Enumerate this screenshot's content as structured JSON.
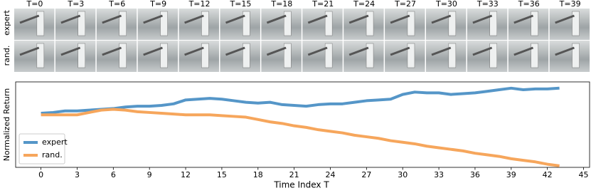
{
  "frames": {
    "labels": [
      "T=0",
      "T=3",
      "T=6",
      "T=9",
      "T=12",
      "T=15",
      "T=18",
      "T=21",
      "T=24",
      "T=27",
      "T=30",
      "T=33",
      "T=36",
      "T=39"
    ],
    "rows": [
      "expert",
      "rand."
    ]
  },
  "chart_data": {
    "type": "line",
    "xlabel": "Time Index T",
    "ylabel": "Normalized Return",
    "x": [
      0,
      1,
      2,
      3,
      4,
      5,
      6,
      7,
      8,
      9,
      10,
      11,
      12,
      13,
      14,
      15,
      16,
      17,
      18,
      19,
      20,
      21,
      22,
      23,
      24,
      25,
      26,
      27,
      28,
      29,
      30,
      31,
      32,
      33,
      34,
      35,
      36,
      37,
      38,
      39,
      40,
      41,
      42,
      43
    ],
    "series": [
      {
        "name": "expert",
        "color": "#5596c8",
        "values": [
          0.67,
          0.68,
          0.7,
          0.7,
          0.71,
          0.72,
          0.73,
          0.75,
          0.76,
          0.76,
          0.77,
          0.79,
          0.84,
          0.85,
          0.86,
          0.85,
          0.83,
          0.81,
          0.8,
          0.81,
          0.78,
          0.77,
          0.76,
          0.78,
          0.79,
          0.79,
          0.81,
          0.83,
          0.84,
          0.85,
          0.91,
          0.94,
          0.93,
          0.93,
          0.91,
          0.92,
          0.93,
          0.95,
          0.97,
          0.99,
          0.97,
          0.98,
          0.98,
          0.99
        ]
      },
      {
        "name": "rand.",
        "color": "#f6a65c",
        "values": [
          0.65,
          0.65,
          0.65,
          0.65,
          0.68,
          0.71,
          0.72,
          0.71,
          0.69,
          0.68,
          0.67,
          0.66,
          0.65,
          0.65,
          0.65,
          0.64,
          0.63,
          0.62,
          0.59,
          0.56,
          0.54,
          0.51,
          0.49,
          0.46,
          0.44,
          0.42,
          0.39,
          0.37,
          0.35,
          0.32,
          0.3,
          0.28,
          0.25,
          0.23,
          0.21,
          0.19,
          0.16,
          0.14,
          0.12,
          0.09,
          0.07,
          0.05,
          0.02,
          0.0
        ]
      }
    ],
    "xlim": [
      -2.1,
      45.5
    ],
    "ylim": [
      -0.02,
      1.07
    ],
    "xticks": [
      0,
      3,
      6,
      9,
      12,
      15,
      18,
      21,
      24,
      27,
      30,
      33,
      36,
      39,
      42,
      45
    ],
    "legend": "lower left"
  }
}
